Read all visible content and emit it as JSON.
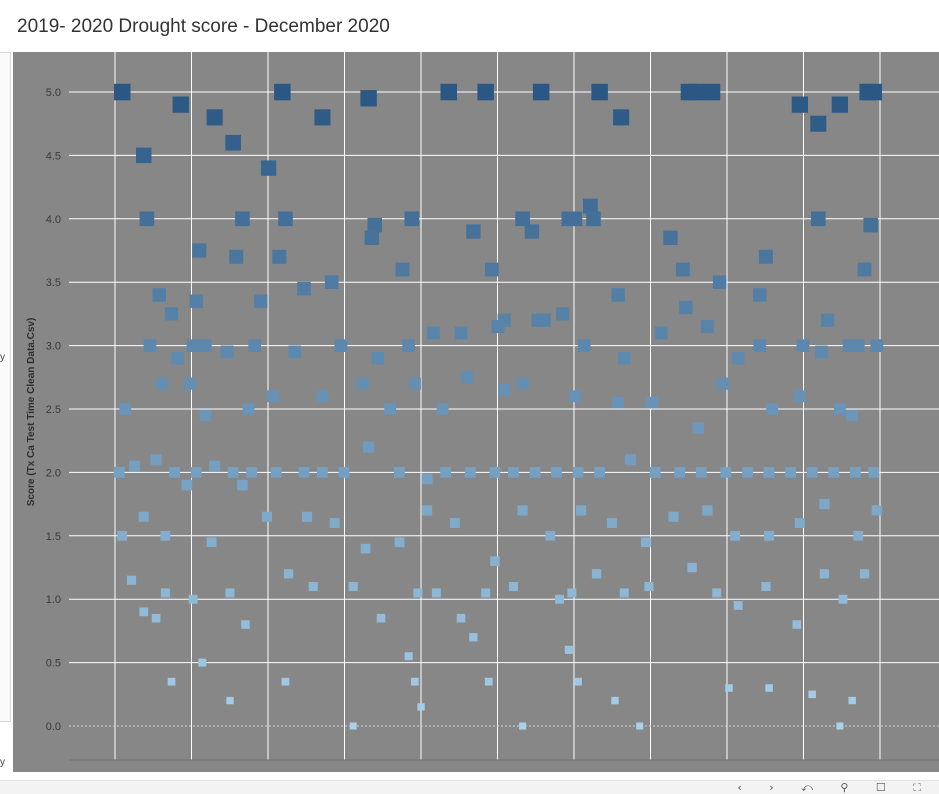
{
  "title": "2019- 2020 Drought score  - December 2020",
  "left_fragments": [
    "y",
    "y"
  ],
  "chart_data": {
    "type": "scatter",
    "title": "2019- 2020 Drought score  - December 2020",
    "xlabel": "",
    "ylabel": "Score (Tx Ca Test Time Clean Data.Csv)",
    "ylim": [
      0,
      5.3
    ],
    "yticks": [
      "0.0",
      "0.5",
      "1.0",
      "1.5",
      "2.0",
      "2.5",
      "3.0",
      "3.5",
      "4.0",
      "4.5",
      "5.0"
    ],
    "grid": true,
    "legend": "none",
    "color_scale": {
      "low": "#a9d1ec",
      "high": "#2a5783"
    },
    "points": [
      [
        0.6,
        5.0
      ],
      [
        2.0,
        4.5
      ],
      [
        4.4,
        4.9
      ],
      [
        6.6,
        4.8
      ],
      [
        7.8,
        4.6
      ],
      [
        10.1,
        4.4
      ],
      [
        11.0,
        5.0
      ],
      [
        13.6,
        4.8
      ],
      [
        16.6,
        4.95
      ],
      [
        21.8,
        5.0
      ],
      [
        24.2,
        5.0
      ],
      [
        27.8,
        5.0
      ],
      [
        31.6,
        5.0
      ],
      [
        33.0,
        4.8
      ],
      [
        37.4,
        5.0
      ],
      [
        37.9,
        5.0
      ],
      [
        38.9,
        5.0
      ],
      [
        44.6,
        4.9
      ],
      [
        45.8,
        4.75
      ],
      [
        47.2,
        4.9
      ],
      [
        49.0,
        5.0
      ],
      [
        49.4,
        5.0
      ],
      [
        2.2,
        4.0
      ],
      [
        5.6,
        3.75
      ],
      [
        8.4,
        4.0
      ],
      [
        11.2,
        4.0
      ],
      [
        17.0,
        3.95
      ],
      [
        19.4,
        4.0
      ],
      [
        23.4,
        3.9
      ],
      [
        26.6,
        4.0
      ],
      [
        27.2,
        3.9
      ],
      [
        29.6,
        4.0
      ],
      [
        30.0,
        4.0
      ],
      [
        31.0,
        4.1
      ],
      [
        31.2,
        4.0
      ],
      [
        36.2,
        3.85
      ],
      [
        39.4,
        3.5
      ],
      [
        42.4,
        3.7
      ],
      [
        45.8,
        4.0
      ],
      [
        48.8,
        3.6
      ],
      [
        49.2,
        3.95
      ],
      [
        3.0,
        3.4
      ],
      [
        3.8,
        3.25
      ],
      [
        5.4,
        3.35
      ],
      [
        8.0,
        3.7
      ],
      [
        9.6,
        3.35
      ],
      [
        10.8,
        3.7
      ],
      [
        12.4,
        3.45
      ],
      [
        14.2,
        3.5
      ],
      [
        16.8,
        3.85
      ],
      [
        18.8,
        3.6
      ],
      [
        24.6,
        3.6
      ],
      [
        25.4,
        3.2
      ],
      [
        28.0,
        3.2
      ],
      [
        29.2,
        3.25
      ],
      [
        32.8,
        3.4
      ],
      [
        35.6,
        3.1
      ],
      [
        37.0,
        3.6
      ],
      [
        42.0,
        3.4
      ],
      [
        44.8,
        3.0
      ],
      [
        46.4,
        3.2
      ],
      [
        47.8,
        3.0
      ],
      [
        2.4,
        3.0
      ],
      [
        4.2,
        2.9
      ],
      [
        5.2,
        3.0
      ],
      [
        6.0,
        3.0
      ],
      [
        7.4,
        2.95
      ],
      [
        9.2,
        3.0
      ],
      [
        11.8,
        2.95
      ],
      [
        14.8,
        3.0
      ],
      [
        17.2,
        2.9
      ],
      [
        19.2,
        3.0
      ],
      [
        20.8,
        3.1
      ],
      [
        22.6,
        3.1
      ],
      [
        25.0,
        3.15
      ],
      [
        27.6,
        3.2
      ],
      [
        30.6,
        3.0
      ],
      [
        33.2,
        2.9
      ],
      [
        37.2,
        3.3
      ],
      [
        38.6,
        3.15
      ],
      [
        40.6,
        2.9
      ],
      [
        42.0,
        3.0
      ],
      [
        46.0,
        2.95
      ],
      [
        48.4,
        3.0
      ],
      [
        49.6,
        3.0
      ],
      [
        0.8,
        2.5
      ],
      [
        3.2,
        2.7
      ],
      [
        5.0,
        2.7
      ],
      [
        6.0,
        2.45
      ],
      [
        8.8,
        2.5
      ],
      [
        10.4,
        2.6
      ],
      [
        13.6,
        2.6
      ],
      [
        16.2,
        2.7
      ],
      [
        18.0,
        2.5
      ],
      [
        19.6,
        2.7
      ],
      [
        21.4,
        2.5
      ],
      [
        23.0,
        2.75
      ],
      [
        25.4,
        2.65
      ],
      [
        26.6,
        2.7
      ],
      [
        30.0,
        2.6
      ],
      [
        32.8,
        2.55
      ],
      [
        35.0,
        2.55
      ],
      [
        38.0,
        2.35
      ],
      [
        39.6,
        2.7
      ],
      [
        42.8,
        2.5
      ],
      [
        44.6,
        2.6
      ],
      [
        47.2,
        2.5
      ],
      [
        48.0,
        2.45
      ],
      [
        0.4,
        2.0
      ],
      [
        1.4,
        2.05
      ],
      [
        2.8,
        2.1
      ],
      [
        4.0,
        2.0
      ],
      [
        5.4,
        2.0
      ],
      [
        6.6,
        2.05
      ],
      [
        7.8,
        2.0
      ],
      [
        9.0,
        2.0
      ],
      [
        10.6,
        2.0
      ],
      [
        12.4,
        2.0
      ],
      [
        13.6,
        2.0
      ],
      [
        15.0,
        2.0
      ],
      [
        16.6,
        2.2
      ],
      [
        18.6,
        2.0
      ],
      [
        20.4,
        1.95
      ],
      [
        21.6,
        2.0
      ],
      [
        23.2,
        2.0
      ],
      [
        24.8,
        2.0
      ],
      [
        26.0,
        2.0
      ],
      [
        27.4,
        2.0
      ],
      [
        28.8,
        2.0
      ],
      [
        30.2,
        2.0
      ],
      [
        31.6,
        2.0
      ],
      [
        33.6,
        2.1
      ],
      [
        35.2,
        2.0
      ],
      [
        36.8,
        2.0
      ],
      [
        38.2,
        2.0
      ],
      [
        39.8,
        2.0
      ],
      [
        41.2,
        2.0
      ],
      [
        42.6,
        2.0
      ],
      [
        44.0,
        2.0
      ],
      [
        45.4,
        2.0
      ],
      [
        46.8,
        2.0
      ],
      [
        48.2,
        2.0
      ],
      [
        49.4,
        2.0
      ],
      [
        0.6,
        1.5
      ],
      [
        2.0,
        1.65
      ],
      [
        3.4,
        1.5
      ],
      [
        4.8,
        1.9
      ],
      [
        6.4,
        1.45
      ],
      [
        8.4,
        1.9
      ],
      [
        10.0,
        1.65
      ],
      [
        12.6,
        1.65
      ],
      [
        14.4,
        1.6
      ],
      [
        16.4,
        1.4
      ],
      [
        18.6,
        1.45
      ],
      [
        20.4,
        1.7
      ],
      [
        22.2,
        1.6
      ],
      [
        24.8,
        1.3
      ],
      [
        26.6,
        1.7
      ],
      [
        28.4,
        1.5
      ],
      [
        30.4,
        1.7
      ],
      [
        32.4,
        1.6
      ],
      [
        34.6,
        1.45
      ],
      [
        36.4,
        1.65
      ],
      [
        38.6,
        1.7
      ],
      [
        40.4,
        1.5
      ],
      [
        42.6,
        1.5
      ],
      [
        44.6,
        1.6
      ],
      [
        46.2,
        1.75
      ],
      [
        48.4,
        1.5
      ],
      [
        49.6,
        1.7
      ],
      [
        1.2,
        1.15
      ],
      [
        2.0,
        0.9
      ],
      [
        3.4,
        1.05
      ],
      [
        5.2,
        1.0
      ],
      [
        7.6,
        1.05
      ],
      [
        8.6,
        0.8
      ],
      [
        11.4,
        1.2
      ],
      [
        13.0,
        1.1
      ],
      [
        15.6,
        1.1
      ],
      [
        17.4,
        0.85
      ],
      [
        19.8,
        1.05
      ],
      [
        21.0,
        1.05
      ],
      [
        22.6,
        0.85
      ],
      [
        24.2,
        1.05
      ],
      [
        26.0,
        1.1
      ],
      [
        29.0,
        1.0
      ],
      [
        29.8,
        1.05
      ],
      [
        31.4,
        1.2
      ],
      [
        33.2,
        1.05
      ],
      [
        34.8,
        1.1
      ],
      [
        37.6,
        1.25
      ],
      [
        39.2,
        1.05
      ],
      [
        40.6,
        0.95
      ],
      [
        42.4,
        1.1
      ],
      [
        44.4,
        0.8
      ],
      [
        46.2,
        1.2
      ],
      [
        47.4,
        1.0
      ],
      [
        48.8,
        1.2
      ],
      [
        2.8,
        0.85
      ],
      [
        3.8,
        0.35
      ],
      [
        5.8,
        0.5
      ],
      [
        7.6,
        0.2
      ],
      [
        11.2,
        0.35
      ],
      [
        15.6,
        0.0
      ],
      [
        19.2,
        0.55
      ],
      [
        19.6,
        0.35
      ],
      [
        20.0,
        0.15
      ],
      [
        23.4,
        0.7
      ],
      [
        24.4,
        0.35
      ],
      [
        26.6,
        0.0
      ],
      [
        29.6,
        0.6
      ],
      [
        30.2,
        0.35
      ],
      [
        32.6,
        0.2
      ],
      [
        34.2,
        0.0
      ],
      [
        40.0,
        0.3
      ],
      [
        42.6,
        0.3
      ],
      [
        45.4,
        0.25
      ],
      [
        47.2,
        0.0
      ],
      [
        48.0,
        0.2
      ]
    ]
  }
}
